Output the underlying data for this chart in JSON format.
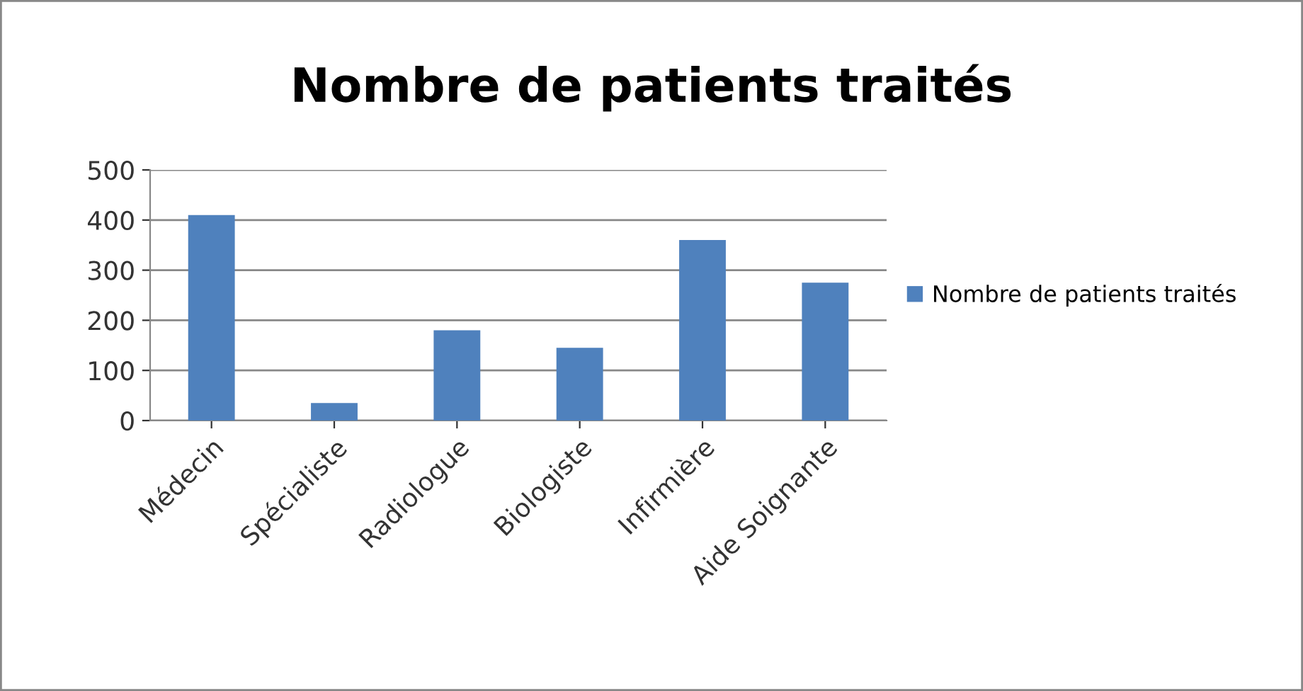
{
  "chart_data": {
    "type": "bar",
    "title": "Nombre de patients traités",
    "categories": [
      "Médecin",
      "Spécialiste",
      "Radiologue",
      "Biologiste",
      "Infirmière",
      "Aide Soignante"
    ],
    "series": [
      {
        "name": "Nombre de patients traités",
        "color": "#4f81bd",
        "values": [
          410,
          35,
          180,
          145,
          360,
          275
        ]
      }
    ],
    "ylim": [
      0,
      500
    ],
    "yticks": [
      0,
      100,
      200,
      300,
      400,
      500
    ],
    "grid": "y",
    "legend": "right"
  }
}
